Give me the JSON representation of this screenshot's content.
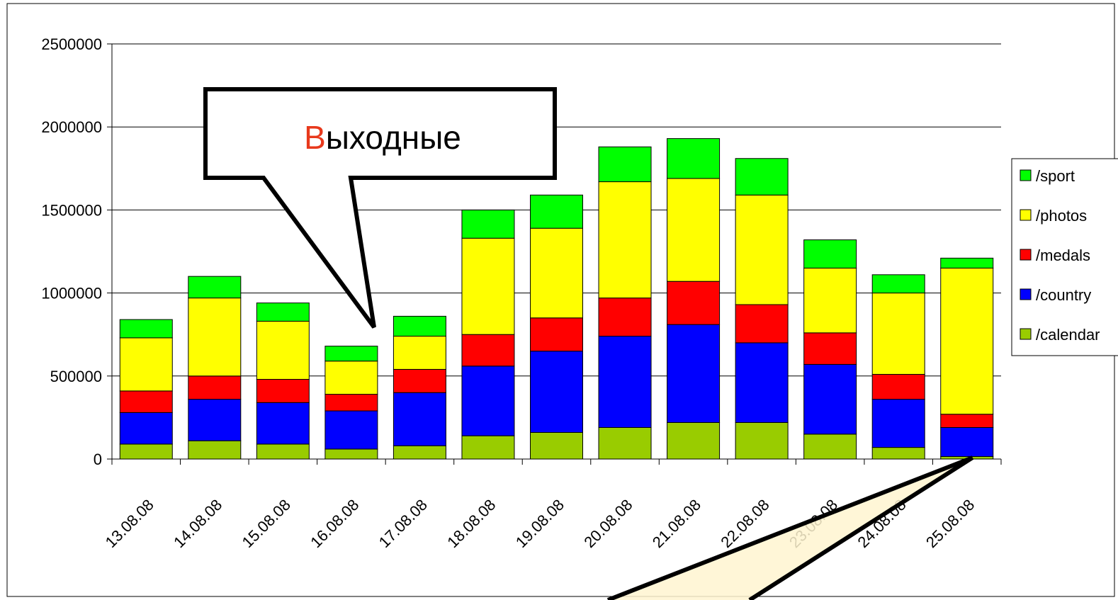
{
  "chart_data": {
    "type": "bar",
    "stacked": true,
    "categories": [
      "13.08.08",
      "14.08.08",
      "15.08.08",
      "16.08.08",
      "17.08.08",
      "18.08.08",
      "19.08.08",
      "20.08.08",
      "21.08.08",
      "22.08.08",
      "23.08.08",
      "24.08.08",
      "25.08.08"
    ],
    "series": [
      {
        "name": "/calendar",
        "color": "#99cc00",
        "values": [
          90000,
          110000,
          90000,
          60000,
          80000,
          140000,
          160000,
          190000,
          220000,
          220000,
          150000,
          70000,
          15000
        ]
      },
      {
        "name": "/country",
        "color": "#0000ff",
        "values": [
          190000,
          250000,
          250000,
          230000,
          320000,
          420000,
          490000,
          550000,
          590000,
          480000,
          420000,
          290000,
          175000
        ]
      },
      {
        "name": "/medals",
        "color": "#ff0000",
        "values": [
          130000,
          140000,
          140000,
          100000,
          140000,
          190000,
          200000,
          230000,
          260000,
          230000,
          190000,
          150000,
          80000
        ]
      },
      {
        "name": "/photos",
        "color": "#ffff00",
        "values": [
          320000,
          470000,
          350000,
          200000,
          200000,
          580000,
          540000,
          700000,
          620000,
          660000,
          390000,
          490000,
          880000
        ]
      },
      {
        "name": "/sport",
        "color": "#00ff00",
        "values": [
          110000,
          130000,
          110000,
          90000,
          120000,
          170000,
          200000,
          210000,
          240000,
          220000,
          170000,
          110000,
          60000
        ]
      }
    ],
    "yticks": [
      0,
      500000,
      1000000,
      1500000,
      2000000,
      2500000
    ],
    "ylim": [
      0,
      2500000
    ],
    "grid": true,
    "legend_position": "right"
  },
  "callout": {
    "first_letter": "В",
    "rest": "ыходные"
  }
}
